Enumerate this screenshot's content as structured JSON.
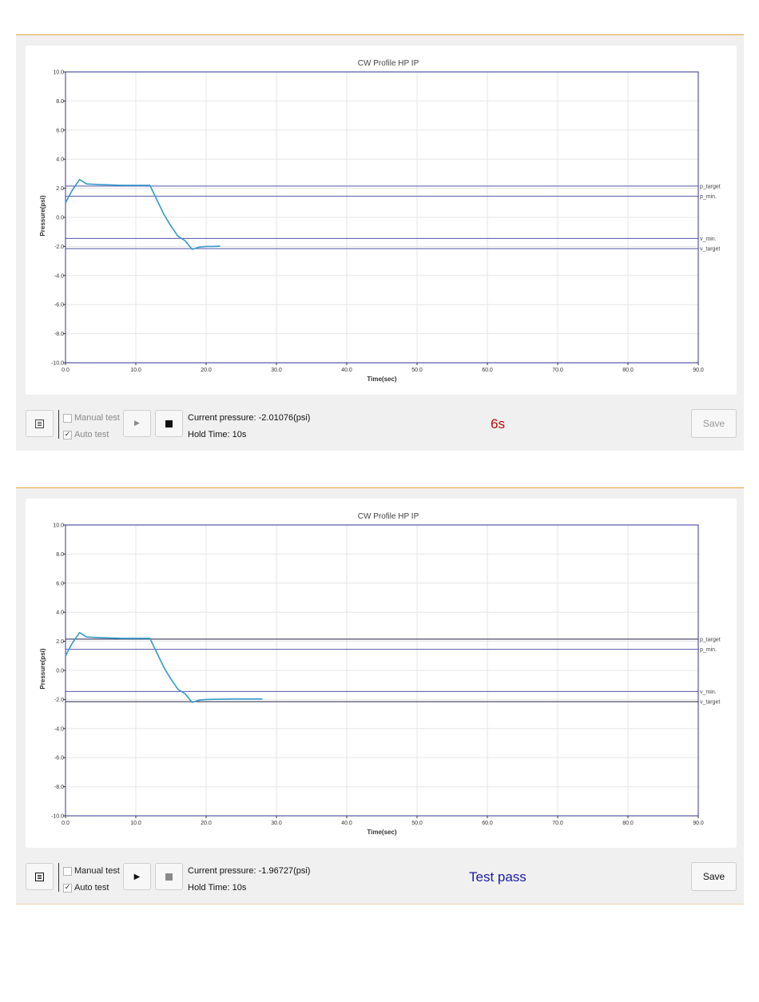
{
  "panels": [
    {
      "toolbar": {
        "manual_label": "Manual test",
        "manual_checked": false,
        "auto_label": "Auto test",
        "auto_checked": true,
        "pressure_text": "Current pressure: -2.01076(psi)",
        "hold_text": "Hold Time: 10s",
        "result_text": "6s",
        "result_color": "#cc0000",
        "save_label": "Save",
        "controls_enabled": false
      },
      "chart_data": {
        "type": "line",
        "title": "CW Profile HP IP",
        "xlabel": "Time(sec)",
        "ylabel": "Pressure(psi)",
        "xlim": [
          0,
          90
        ],
        "ylim": [
          -10,
          10
        ],
        "x_ticks": [
          "0.0",
          "10.0",
          "20.0",
          "30.0",
          "40.0",
          "50.0",
          "60.0",
          "70.0",
          "80.0",
          "90.0"
        ],
        "y_ticks": [
          "10.0",
          "8.0",
          "6.0",
          "4.0",
          "2.0",
          "0.0",
          "-2.0",
          "-4.0",
          "-6.0",
          "-8.0",
          "-10.0"
        ],
        "grid": true,
        "series": [
          {
            "color": "#3399cc",
            "x": [
              0,
              1,
              2,
              3,
              5,
              8,
              10,
              12,
              13,
              14,
              15,
              16,
              17,
              18,
              19,
              20,
              21,
              22
            ],
            "y": [
              1.0,
              1.9,
              2.6,
              2.3,
              2.25,
              2.2,
              2.2,
              2.2,
              1.2,
              0.2,
              -0.6,
              -1.3,
              -1.6,
              -2.2,
              -2.05,
              -2.0,
              -2.0,
              -1.98
            ]
          }
        ],
        "reference_lines": [
          {
            "label": "p_target",
            "y": 2.15,
            "color": "#5555aa"
          },
          {
            "label": "p_min.",
            "y": 1.45,
            "color": "#5555aa"
          },
          {
            "label": "v_min.",
            "y": -1.45,
            "color": "#5555aa"
          },
          {
            "label": "v_target",
            "y": -2.15,
            "color": "#5555aa"
          }
        ]
      }
    },
    {
      "toolbar": {
        "manual_label": "Manual test",
        "manual_checked": false,
        "auto_label": "Auto test",
        "auto_checked": true,
        "pressure_text": "Current pressure: -1.96727(psi)",
        "hold_text": "Hold Time: 10s",
        "result_text": "Test pass",
        "result_color": "#1a1aaa",
        "save_label": "Save",
        "controls_enabled": true
      },
      "chart_data": {
        "type": "line",
        "title": "CW Profile HP IP",
        "xlabel": "Time(sec)",
        "ylabel": "Pressure(psi)",
        "xlim": [
          0,
          90
        ],
        "ylim": [
          -10,
          10
        ],
        "x_ticks": [
          "0.0",
          "10.0",
          "20.0",
          "30.0",
          "40.0",
          "50.0",
          "60.0",
          "70.0",
          "80.0",
          "90.0"
        ],
        "y_ticks": [
          "10.0",
          "8.0",
          "6.0",
          "4.0",
          "2.0",
          "0.0",
          "-2.0",
          "-4.0",
          "-6.0",
          "-8.0",
          "-10.0"
        ],
        "grid": true,
        "series": [
          {
            "color": "#3399cc",
            "x": [
              0,
              1,
              2,
              3,
              5,
              8,
              10,
              12,
              13,
              14,
              15,
              16,
              17,
              18,
              19,
              20,
              22,
              24,
              26,
              28
            ],
            "y": [
              1.0,
              1.9,
              2.6,
              2.3,
              2.25,
              2.2,
              2.2,
              2.2,
              1.2,
              0.2,
              -0.6,
              -1.3,
              -1.6,
              -2.2,
              -2.05,
              -2.0,
              -1.98,
              -1.97,
              -1.97,
              -1.97
            ]
          }
        ],
        "reference_lines": [
          {
            "label": "p_target",
            "y": 2.15,
            "color": "#222244"
          },
          {
            "label": "p_min.",
            "y": 1.45,
            "color": "#5555aa"
          },
          {
            "label": "v_min.",
            "y": -1.45,
            "color": "#5555aa"
          },
          {
            "label": "v_target",
            "y": -2.15,
            "color": "#222244"
          }
        ]
      }
    }
  ]
}
